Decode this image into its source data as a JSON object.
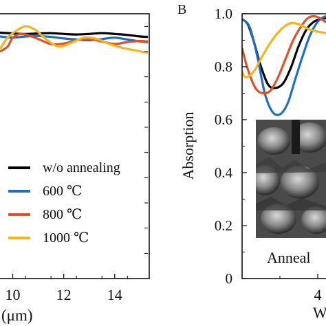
{
  "chart_data": [
    {
      "type": "line",
      "panel_label": "",
      "xlabel": "(μm)",
      "x_ticks": [
        "10",
        "12",
        "14"
      ],
      "x_tick_values": [
        10,
        12,
        14
      ],
      "xlim": [
        9.5,
        15.3
      ],
      "ylim": [
        0,
        1.05
      ],
      "legend_position": "lower-right",
      "legend": [
        "w/o annealing",
        "600 ℃",
        "800 ℃",
        "1000 ℃"
      ],
      "series": [
        {
          "name": "w/o annealing",
          "color": "#000000",
          "x": [
            9.5,
            10.0,
            10.5,
            11.0,
            11.5,
            12.0,
            12.5,
            13.0,
            13.5,
            14.0,
            14.5,
            15.0,
            15.3
          ],
          "y": [
            0.975,
            0.972,
            0.97,
            0.972,
            0.973,
            0.97,
            0.968,
            0.97,
            0.973,
            0.97,
            0.966,
            0.96,
            0.958
          ]
        },
        {
          "name": "600 ℃",
          "color": "#1f6fc0",
          "x": [
            9.5,
            10.0,
            10.5,
            11.0,
            11.5,
            12.0,
            12.5,
            13.0,
            13.5,
            14.0,
            14.5,
            15.0,
            15.3
          ],
          "y": [
            0.96,
            0.955,
            0.96,
            0.962,
            0.958,
            0.952,
            0.948,
            0.945,
            0.95,
            0.955,
            0.948,
            0.94,
            0.937
          ]
        },
        {
          "name": "800 ℃",
          "color": "#e0502a",
          "x": [
            9.5,
            9.8,
            10.0,
            10.3,
            10.6,
            11.0,
            11.5,
            12.0,
            12.5,
            13.0,
            13.5,
            14.0,
            14.5,
            15.0,
            15.3
          ],
          "y": [
            0.9,
            0.92,
            0.955,
            0.97,
            0.965,
            0.95,
            0.93,
            0.932,
            0.945,
            0.95,
            0.94,
            0.93,
            0.938,
            0.942,
            0.94
          ]
        },
        {
          "name": "1000 ℃",
          "color": "#f5b51e",
          "x": [
            9.5,
            9.8,
            10.1,
            10.5,
            10.9,
            11.3,
            11.8,
            12.3,
            12.8,
            13.3,
            13.8,
            14.3,
            14.8,
            15.3
          ],
          "y": [
            0.91,
            0.955,
            0.98,
            1.0,
            0.985,
            0.95,
            0.92,
            0.935,
            0.955,
            0.95,
            0.93,
            0.915,
            0.905,
            0.895
          ]
        }
      ]
    },
    {
      "type": "line",
      "panel_label": "B",
      "ylabel": "Absorption",
      "xlabel": "W",
      "x_ticks": [
        "4"
      ],
      "x_tick_values": [
        4
      ],
      "y_ticks": [
        "0",
        "0.2",
        "0.4",
        "0.6",
        "0.8",
        "1.0"
      ],
      "y_tick_values": [
        0,
        0.2,
        0.4,
        0.6,
        0.8,
        1.0
      ],
      "xlim": [
        2.0,
        6.5
      ],
      "ylim": [
        0,
        1.0
      ],
      "inset_caption": "Anneal",
      "series": [
        {
          "name": "w/o annealing",
          "color": "#000000",
          "x": [
            2.0,
            2.15,
            2.3,
            2.5,
            2.7,
            2.9,
            3.1,
            3.3,
            3.5,
            3.7,
            3.9,
            4.1,
            4.3,
            4.6
          ],
          "y": [
            0.98,
            0.96,
            0.9,
            0.8,
            0.73,
            0.72,
            0.74,
            0.8,
            0.88,
            0.94,
            0.97,
            0.98,
            0.985,
            0.985
          ]
        },
        {
          "name": "600 ℃",
          "color": "#1f6fc0",
          "x": [
            2.0,
            2.2,
            2.4,
            2.6,
            2.8,
            3.0,
            3.2,
            3.4,
            3.6,
            3.8,
            4.0,
            4.2,
            4.4,
            4.6,
            4.8,
            5.0,
            5.4,
            5.8,
            6.2,
            6.5
          ],
          "y": [
            0.98,
            0.95,
            0.84,
            0.7,
            0.63,
            0.62,
            0.66,
            0.75,
            0.84,
            0.92,
            0.97,
            0.99,
            0.995,
            0.99,
            0.975,
            0.96,
            0.955,
            0.96,
            0.97,
            0.975
          ]
        },
        {
          "name": "800 ℃",
          "color": "#e0502a",
          "x": [
            2.0,
            2.15,
            2.35,
            2.55,
            2.75,
            2.95,
            3.15,
            3.35,
            3.55,
            3.75,
            3.95,
            4.15,
            4.35,
            4.55,
            4.8,
            5.1,
            5.5,
            6.0,
            6.5
          ],
          "y": [
            0.87,
            0.79,
            0.72,
            0.7,
            0.71,
            0.76,
            0.83,
            0.9,
            0.95,
            0.985,
            0.99,
            0.975,
            0.955,
            0.945,
            0.95,
            0.96,
            0.955,
            0.95,
            0.955
          ]
        },
        {
          "name": "1000 ℃",
          "color": "#f5b51e",
          "x": [
            2.0,
            2.1,
            2.3,
            2.5,
            2.7,
            2.9,
            3.1,
            3.3,
            3.5,
            3.8,
            4.1,
            4.4,
            4.7,
            5.0,
            5.3,
            5.6,
            6.0,
            6.5
          ],
          "y": [
            0.78,
            0.76,
            0.78,
            0.83,
            0.88,
            0.92,
            0.95,
            0.965,
            0.96,
            0.94,
            0.93,
            0.925,
            0.935,
            0.96,
            0.98,
            0.97,
            0.945,
            0.93
          ]
        }
      ]
    }
  ]
}
